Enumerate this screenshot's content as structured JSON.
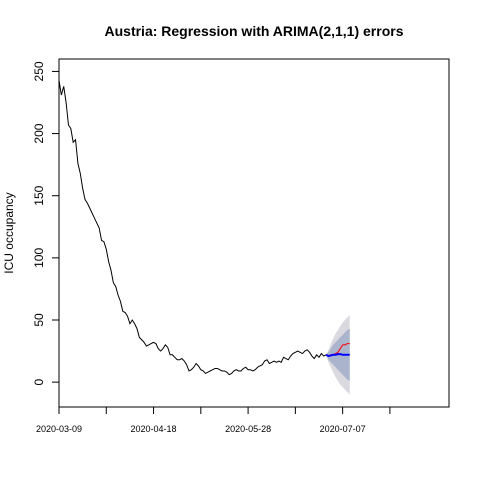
{
  "chart_data": {
    "type": "line",
    "title": "Austria: Regression with ARIMA(2,1,1) errors",
    "xlabel": "",
    "ylabel": "ICU occupancy",
    "x_start_date": "2020-03-09",
    "x_tick_labels": [
      "2020-03-09",
      "2020-04-18",
      "2020-05-28",
      "2020-07-07"
    ],
    "x_minor_tick_dates": [
      "2020-03-29",
      "2020-05-08",
      "2020-06-17",
      "2020-07-27"
    ],
    "xlim": [
      "2020-03-09",
      "2020-08-21"
    ],
    "y_ticks": [
      0,
      50,
      100,
      150,
      200,
      250
    ],
    "ylim": [
      -20,
      260
    ],
    "grid": false,
    "colors": {
      "observed": "#000000",
      "actual_future": "#ff0000",
      "forecast_mean": "#0000ff",
      "band_80": "#aab4cc",
      "band_95": "#d9d9df"
    },
    "series": [
      {
        "role": "observed",
        "values": [
          243,
          231,
          238,
          225,
          207,
          204,
          193,
          195,
          176,
          168,
          156,
          147,
          144,
          140,
          136,
          132,
          128,
          124,
          114,
          113,
          107,
          97,
          90,
          80,
          77,
          70,
          65,
          57,
          56,
          53,
          47,
          50,
          47,
          43,
          36,
          34,
          32,
          29,
          30,
          31,
          32,
          31,
          27,
          25,
          27,
          30,
          28,
          22,
          22,
          20,
          18,
          18,
          19,
          17,
          14,
          9,
          10,
          12,
          15,
          13,
          10,
          9,
          7,
          8,
          9,
          10,
          11,
          11,
          10,
          9,
          9,
          8,
          6,
          7,
          9,
          10,
          9,
          9,
          11,
          12,
          10,
          10,
          9,
          10,
          12,
          13,
          14,
          17,
          18,
          15,
          16,
          17,
          16,
          17,
          16,
          20,
          19,
          18,
          21,
          23,
          24,
          25,
          24,
          23,
          25,
          26,
          24,
          21,
          19,
          22,
          20,
          23,
          21,
          22
        ]
      },
      {
        "role": "actual_future",
        "values": [
          21,
          22,
          22,
          23,
          24,
          27,
          30,
          30,
          31,
          31
        ]
      },
      {
        "role": "forecast_mean",
        "values": [
          21,
          21.5,
          22,
          22,
          22.5,
          22.5,
          22,
          22,
          22,
          22
        ]
      },
      {
        "role": "forecast_80",
        "lower": [
          18,
          16,
          14,
          12,
          10,
          8,
          6,
          4,
          2,
          1
        ],
        "upper": [
          24,
          27,
          30,
          32,
          34,
          36,
          38,
          40,
          42,
          43
        ]
      },
      {
        "role": "forecast_95",
        "lower": [
          16,
          12,
          8,
          4,
          1,
          -2,
          -4,
          -6,
          -8,
          -10
        ],
        "upper": [
          26,
          31,
          35,
          39,
          42,
          45,
          48,
          50,
          52,
          54
        ]
      }
    ]
  }
}
